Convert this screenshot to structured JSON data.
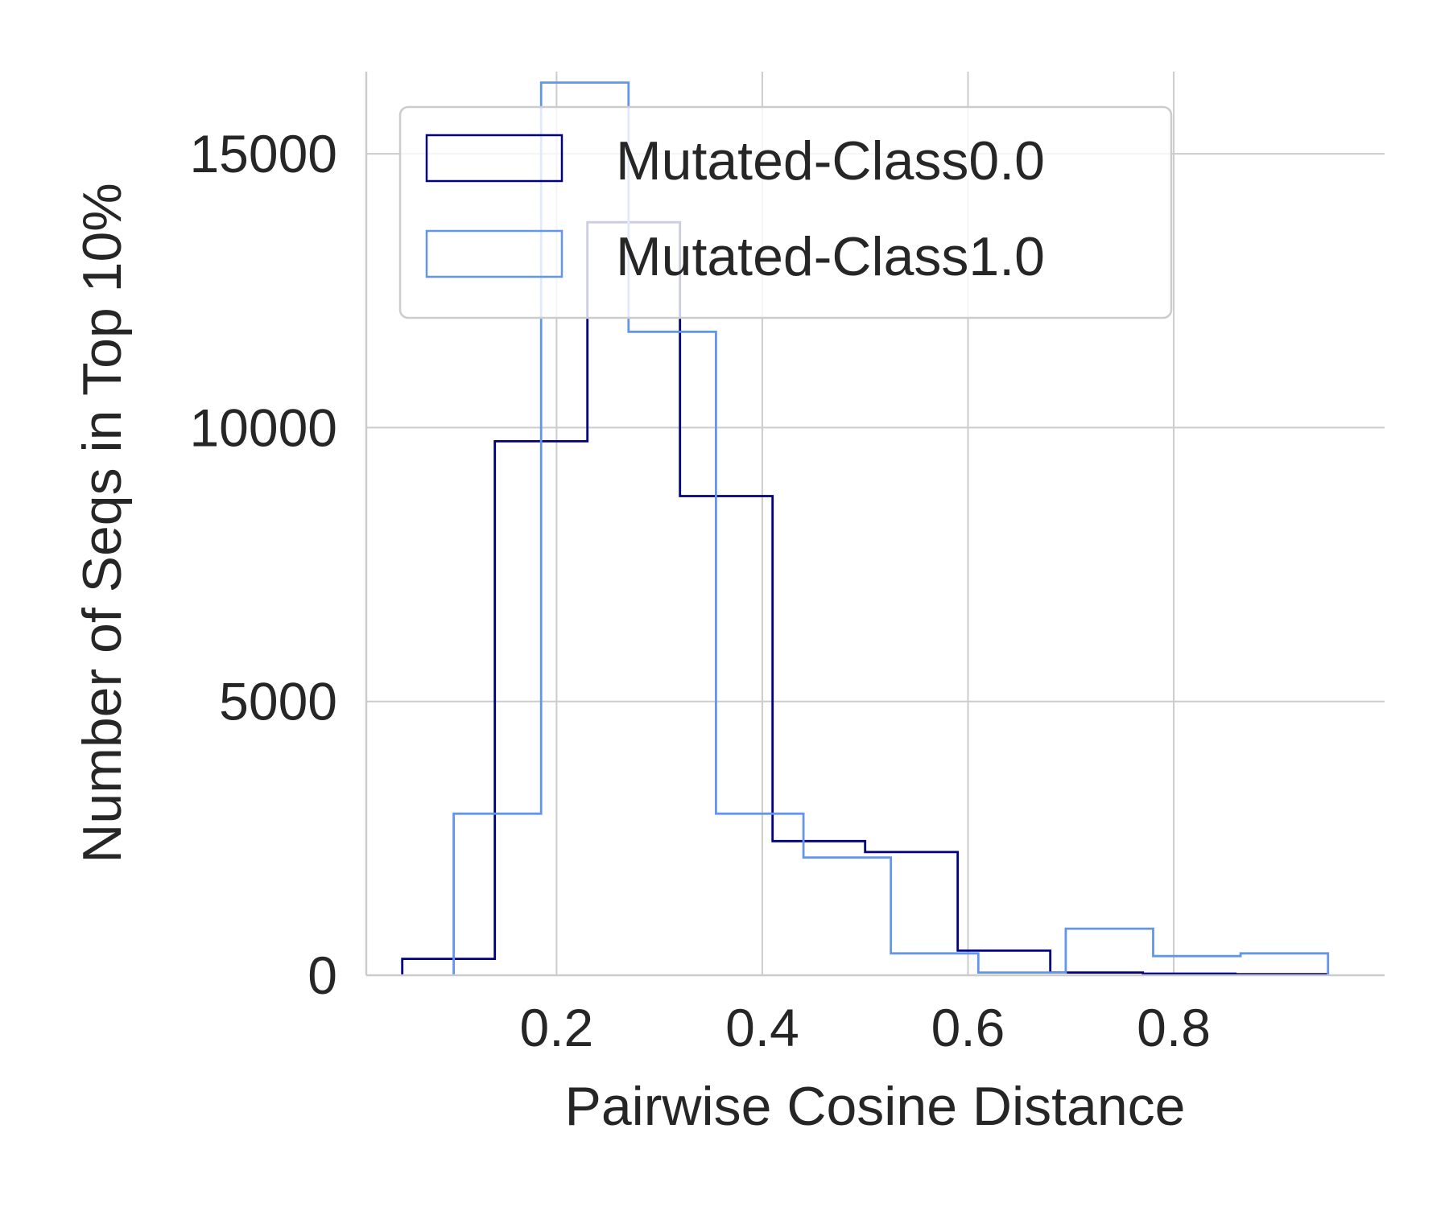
{
  "chart_data": {
    "type": "histogram",
    "xlabel": "Pairwise Cosine Distance",
    "ylabel": "Number of Seqs in Top 10%",
    "xlim": [
      0.015,
      1.005
    ],
    "ylim": [
      0,
      16500
    ],
    "xticks": [
      0.2,
      0.4,
      0.6,
      0.8
    ],
    "xtick_labels": [
      "0.2",
      "0.4",
      "0.6",
      "0.8"
    ],
    "yticks": [
      0,
      5000,
      10000,
      15000
    ],
    "ytick_labels": [
      "0",
      "5000",
      "10000",
      "15000"
    ],
    "grid": true,
    "legend_position": "top-left",
    "series": [
      {
        "name": "Mutated-Class0.0",
        "color": "#000080",
        "bin_edges": [
          0.05,
          0.14,
          0.23,
          0.32,
          0.41,
          0.5,
          0.59,
          0.68,
          0.77,
          0.86,
          0.95
        ],
        "counts": [
          300,
          9750,
          13750,
          8750,
          2450,
          2250,
          450,
          50,
          30,
          20
        ]
      },
      {
        "name": "Mutated-Class1.0",
        "color": "#6495ED",
        "bin_edges": [
          0.1,
          0.185,
          0.27,
          0.355,
          0.44,
          0.525,
          0.61,
          0.695,
          0.78,
          0.865,
          0.95
        ],
        "counts": [
          2950,
          16300,
          11750,
          2950,
          2150,
          400,
          50,
          850,
          350,
          400
        ]
      }
    ]
  }
}
